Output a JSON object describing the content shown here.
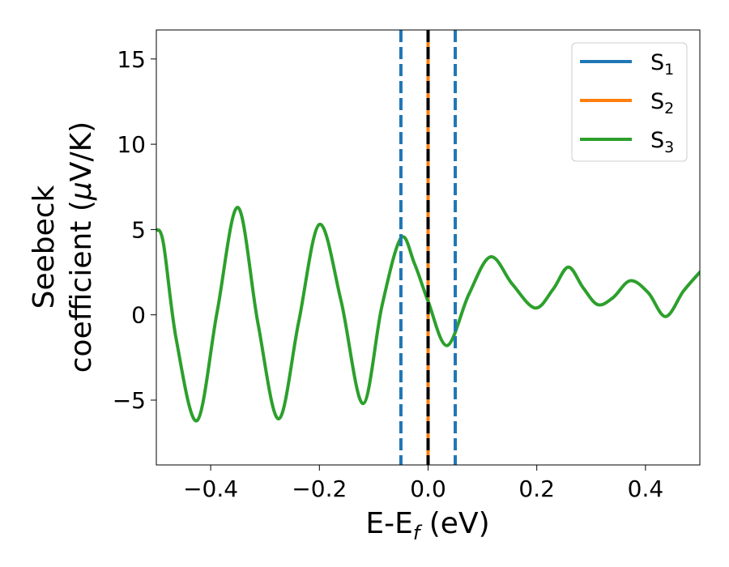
{
  "chart_data": {
    "type": "line",
    "title": "",
    "xlabel": "E-E",
    "xlabel_sub": "f",
    "xlabel_unit": "(eV)",
    "ylabel_line1": "Seebeck",
    "ylabel_line2_pre": "coefficient  (",
    "ylabel_mu": "μ",
    "ylabel_line2_post": "V/K)",
    "xlim": [
      -0.5,
      0.5
    ],
    "ylim": [
      -8.8,
      16.7
    ],
    "xticks": [
      -0.4,
      -0.2,
      0.0,
      0.2,
      0.4
    ],
    "xtick_labels": [
      "−0.4",
      "−0.2",
      "0.0",
      "0.2",
      "0.4"
    ],
    "yticks": [
      -5,
      0,
      5,
      10,
      15
    ],
    "ytick_labels": [
      "−5",
      "0",
      "5",
      "10",
      "15"
    ],
    "grid": false,
    "legend_position": "top-right",
    "series": [
      {
        "name": "S",
        "name_sub": "1",
        "color": "#1f77b4",
        "x": [
          0.0,
          0.0
        ],
        "y": [
          -8.8,
          16.7
        ]
      },
      {
        "name": "S",
        "name_sub": "2",
        "color": "#ff7f0e",
        "x": [
          0.0,
          0.0
        ],
        "y": [
          -8.8,
          16.7
        ]
      },
      {
        "name": "S",
        "name_sub": "3",
        "color": "#2ca02c",
        "x": [
          -0.5,
          -0.487,
          -0.463,
          -0.425,
          -0.388,
          -0.35,
          -0.313,
          -0.275,
          -0.238,
          -0.2,
          -0.16,
          -0.12,
          -0.085,
          -0.05,
          -0.025,
          0.0,
          0.035,
          0.075,
          0.115,
          0.155,
          0.197,
          0.23,
          0.258,
          0.285,
          0.312,
          0.34,
          0.372,
          0.405,
          0.437,
          0.47,
          0.5
        ],
        "y": [
          5.0,
          4.2,
          -1.5,
          -6.2,
          0.2,
          6.3,
          -0.5,
          -6.1,
          -0.4,
          5.3,
          0.8,
          -5.2,
          0.5,
          4.5,
          3.0,
          0.8,
          -1.8,
          1.2,
          3.4,
          1.8,
          0.4,
          1.5,
          2.8,
          1.6,
          0.6,
          1.0,
          2.0,
          1.3,
          -0.1,
          1.4,
          2.5
        ]
      }
    ],
    "vlines": [
      {
        "x": -0.05,
        "style": "dashed",
        "color": "#1f77b4"
      },
      {
        "x": 0.05,
        "style": "dashed",
        "color": "#1f77b4"
      },
      {
        "x": 0.0,
        "style": "dashed",
        "color": "#000000"
      }
    ]
  }
}
